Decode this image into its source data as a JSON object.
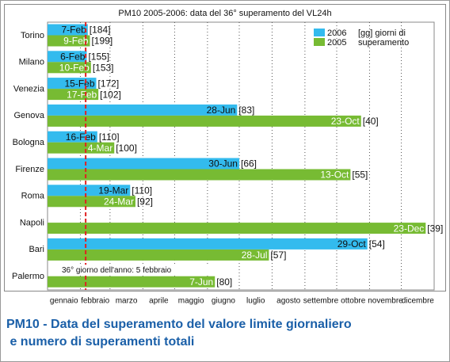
{
  "chart_data": {
    "type": "bar",
    "orientation": "horizontal",
    "title": "PM10 2005-2006: data del 36° superamento del VL24h",
    "caption": "PM10 - Data del superamento del valore limite giornaliero e numero di superamenti totali",
    "categories": [
      "Torino",
      "Milano",
      "Venezia",
      "Genova",
      "Bologna",
      "Firenze",
      "Roma",
      "Napoli",
      "Bari",
      "Palermo"
    ],
    "series": [
      {
        "name": "2006",
        "color": "#33bbee",
        "values": [
          38,
          37,
          46,
          179,
          47,
          181,
          78,
          null,
          302,
          null
        ],
        "value_labels": [
          "7-Feb",
          "6-Feb",
          "15-Feb",
          "28-Jun",
          "16-Feb",
          "30-Jun",
          "19-Mar",
          null,
          "29-Oct",
          null
        ],
        "count_labels": [
          "[184]",
          "[155]",
          "[172]",
          "[83]",
          "[110]",
          "[66]",
          "[110]",
          null,
          "[54]",
          null
        ]
      },
      {
        "name": "2005",
        "color": "#77bb33",
        "values": [
          40,
          41,
          48,
          296,
          63,
          286,
          83,
          357,
          209,
          158
        ],
        "value_labels": [
          "9-Feb",
          "10-Feb",
          "17-Feb",
          "23-Oct",
          "4-Mar",
          "13-Oct",
          "24-Mar",
          "23-Dec",
          "28-Jul",
          "7-Jun"
        ],
        "count_labels": [
          "[199]",
          "[153]",
          "[102]",
          "[40]",
          "[100]",
          "[55]",
          "[92]",
          "[39]",
          "[57]",
          "[80]"
        ]
      }
    ],
    "legend_note": [
      "[gg] giorni di",
      "superamento"
    ],
    "xlim": [
      0,
      365
    ],
    "xticks": [
      {
        "value": 0,
        "label": "gennaio"
      },
      {
        "value": 31,
        "label": "febbraio"
      },
      {
        "value": 59,
        "label": "marzo"
      },
      {
        "value": 90,
        "label": "aprile"
      },
      {
        "value": 120,
        "label": "maggio"
      },
      {
        "value": 151,
        "label": "giugno"
      },
      {
        "value": 181,
        "label": "luglio"
      },
      {
        "value": 212,
        "label": "agosto"
      },
      {
        "value": 243,
        "label": "settembre"
      },
      {
        "value": 273,
        "label": "ottobre"
      },
      {
        "value": 304,
        "label": "novembre"
      },
      {
        "value": 334,
        "label": "dicembre"
      }
    ],
    "grid": true,
    "reference_line": {
      "value": 36,
      "color": "#e02020",
      "label": "36° giorno dell'anno: 5 febbraio"
    }
  }
}
